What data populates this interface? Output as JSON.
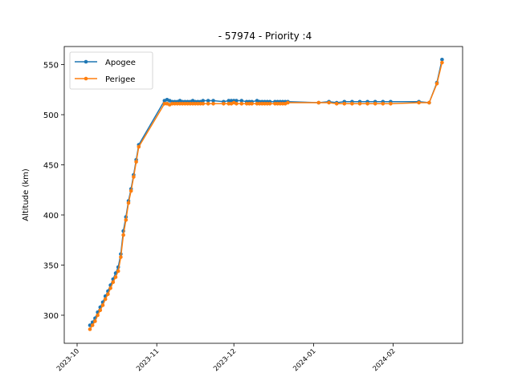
{
  "chart_data": {
    "type": "line",
    "title": "- 57974 - Priority :4",
    "xlabel": "",
    "ylabel": "Altitude (km)",
    "xlim": [
      "2023-09-26",
      "2024-02-28"
    ],
    "ylim": [
      272,
      568
    ],
    "yticks": [
      300,
      350,
      400,
      450,
      500,
      550
    ],
    "xticks": [
      "2023-10-01",
      "2023-11-01",
      "2023-12-01",
      "2024-01-01",
      "2024-02-01"
    ],
    "xtick_labels": [
      "2023-10",
      "2023-11",
      "2023-12",
      "2024-01",
      "2024-02"
    ],
    "legend_position": "upper-left",
    "grid": false,
    "x": [
      "2023-10-06",
      "2023-10-07",
      "2023-10-08",
      "2023-10-09",
      "2023-10-10",
      "2023-10-11",
      "2023-10-12",
      "2023-10-13",
      "2023-10-14",
      "2023-10-15",
      "2023-10-16",
      "2023-10-17",
      "2023-10-18",
      "2023-10-19",
      "2023-10-20",
      "2023-10-21",
      "2023-10-22",
      "2023-10-23",
      "2023-10-24",
      "2023-10-25",
      "2023-11-04",
      "2023-11-05",
      "2023-11-06",
      "2023-11-07",
      "2023-11-08",
      "2023-11-09",
      "2023-11-10",
      "2023-11-11",
      "2023-11-12",
      "2023-11-13",
      "2023-11-14",
      "2023-11-15",
      "2023-11-16",
      "2023-11-17",
      "2023-11-18",
      "2023-11-19",
      "2023-11-21",
      "2023-11-23",
      "2023-11-27",
      "2023-11-29",
      "2023-11-30",
      "2023-12-01",
      "2023-12-02",
      "2023-12-04",
      "2023-12-06",
      "2023-12-07",
      "2023-12-08",
      "2023-12-10",
      "2023-12-11",
      "2023-12-12",
      "2023-12-13",
      "2023-12-14",
      "2023-12-15",
      "2023-12-17",
      "2023-12-18",
      "2023-12-19",
      "2023-12-20",
      "2023-12-21",
      "2023-12-22",
      "2024-01-03",
      "2024-01-07",
      "2024-01-10",
      "2024-01-13",
      "2024-01-16",
      "2024-01-19",
      "2024-01-22",
      "2024-01-25",
      "2024-01-28",
      "2024-01-31",
      "2024-02-11",
      "2024-02-15",
      "2024-02-18",
      "2024-02-20"
    ],
    "series": [
      {
        "name": "Apogee",
        "color": "#1f77b4",
        "values": [
          290,
          293,
          297,
          303,
          308,
          313,
          319,
          324,
          330,
          336,
          342,
          348,
          361,
          384,
          398,
          414,
          426,
          440,
          455,
          470,
          514,
          515,
          514,
          513,
          513,
          513,
          514,
          513,
          513,
          513,
          513,
          514,
          513,
          513,
          513,
          514,
          514,
          514,
          513,
          514,
          514,
          514,
          514,
          514,
          513,
          513,
          513,
          514,
          513,
          513,
          513,
          513,
          513,
          513,
          513,
          513,
          513,
          513,
          513,
          512,
          513,
          512,
          513,
          513,
          513,
          513,
          513,
          513,
          513,
          513,
          512,
          532,
          555
        ]
      },
      {
        "name": "Perigee",
        "color": "#ff7f0e",
        "values": [
          286,
          290,
          294,
          300,
          305,
          310,
          316,
          321,
          327,
          333,
          338,
          344,
          358,
          380,
          395,
          412,
          424,
          438,
          453,
          468,
          511,
          511,
          510,
          511,
          511,
          511,
          511,
          511,
          511,
          511,
          511,
          511,
          511,
          511,
          511,
          511,
          511,
          511,
          511,
          511,
          511,
          512,
          511,
          511,
          511,
          511,
          511,
          511,
          511,
          511,
          511,
          511,
          511,
          511,
          511,
          511,
          511,
          511,
          512,
          512,
          512,
          511,
          511,
          511,
          511,
          511,
          511,
          511,
          511,
          512,
          512,
          531,
          552
        ]
      }
    ]
  }
}
